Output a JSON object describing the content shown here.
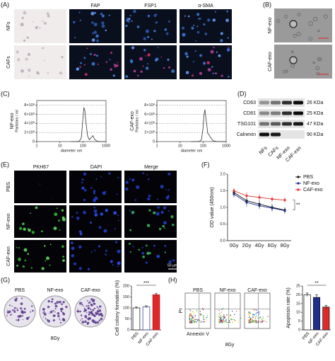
{
  "panels": {
    "A": {
      "label": "(A)",
      "columns": [
        "FAP",
        "FSP1",
        "α-SMA"
      ],
      "rows": [
        "NFs",
        "CAFs"
      ]
    },
    "B": {
      "label": "(B)",
      "rows": [
        "NF-exo",
        "CAF-exo"
      ]
    },
    "C": {
      "label": "(C)"
    },
    "D": {
      "label": "(D)",
      "proteins": [
        "CD63",
        "CD81",
        "TSG101",
        "Calnexin"
      ],
      "sizes": [
        "26 KDa",
        "25 KDa",
        "47 KDa",
        "90 KDa"
      ],
      "lanes": [
        "NFs",
        "CAFs",
        "NF-exo",
        "CAF-exo"
      ]
    },
    "E": {
      "label": "(E)",
      "columns": [
        "PKH67",
        "DAPI",
        "Merge"
      ],
      "rows": [
        "PBS",
        "NF-exo",
        "CAF-exo"
      ],
      "scale_bar": "50 μm"
    },
    "F": {
      "label": "(F)"
    },
    "G": {
      "label": "(G)",
      "groups": [
        "PBS",
        "NF-exo",
        "CAF-exo"
      ],
      "dose": "8Gy"
    },
    "H": {
      "label": "(H)",
      "groups": [
        "PBS",
        "NF-exo",
        "CAF-exo"
      ],
      "y_axis": "PI",
      "x_axis": "Annexin V",
      "dose": "8Gy"
    }
  },
  "chart_data": [
    {
      "type": "line",
      "log_x": true,
      "xlabel": "diameter nm",
      "ylabel": "Particles / ml",
      "grid": true,
      "x": [
        30,
        50,
        70,
        85,
        100,
        110,
        120,
        135,
        160,
        190,
        230,
        270,
        320,
        400,
        600,
        1000
      ],
      "series": [
        {
          "name": "NF-exo",
          "color": "#333333",
          "values": [
            0,
            0,
            10000000,
            80000000,
            500000000,
            740000000,
            700000000,
            420000000,
            120000000,
            40000000,
            90000000,
            130000000,
            50000000,
            10000000,
            0,
            0
          ]
        }
      ],
      "xlim": [
        1,
        1000
      ],
      "xticks": [
        1,
        10,
        100,
        1000
      ],
      "ylim": [
        0,
        900000000
      ],
      "yticks": [
        0,
        {
          "value": 200000000,
          "label": "2×10⁸"
        },
        {
          "value": 400000000,
          "label": "4×10⁸"
        },
        {
          "value": 600000000,
          "label": "6×10⁸"
        },
        {
          "value": 800000000,
          "label": "8×10⁸"
        }
      ]
    },
    {
      "type": "line",
      "log_x": true,
      "xlabel": "diameter nm",
      "ylabel": "Particles / ml",
      "grid": true,
      "x": [
        30,
        50,
        70,
        85,
        100,
        110,
        120,
        135,
        160,
        190,
        230,
        270,
        320,
        400,
        600,
        1000
      ],
      "series": [
        {
          "name": "CAF-exo",
          "color": "#333333",
          "values": [
            0,
            0,
            5000000,
            40000000,
            300000000,
            600000000,
            700000000,
            480000000,
            180000000,
            130000000,
            60000000,
            20000000,
            10000000,
            0,
            0,
            0
          ]
        }
      ],
      "xlim": [
        1,
        1000
      ],
      "xticks": [
        1,
        10,
        100,
        1000
      ],
      "ylim": [
        0,
        900000000
      ],
      "yticks": [
        0,
        {
          "value": 200000000,
          "label": "2×10⁸"
        },
        {
          "value": 400000000,
          "label": "4×10⁸"
        },
        {
          "value": 600000000,
          "label": "6×10⁸"
        },
        {
          "value": 800000000,
          "label": "8×10⁸"
        }
      ]
    },
    {
      "type": "line",
      "ylabel": "OD value (450nm)",
      "legend": "right",
      "annotation": "**",
      "categories": [
        "0Gy",
        "2Gy",
        "4Gy",
        "6Gy",
        "8Gy"
      ],
      "series": [
        {
          "name": "PBS",
          "color": "#111111",
          "values": [
            1.45,
            1.2,
            1.1,
            1.0,
            0.92
          ],
          "errors": [
            0.1,
            0.1,
            0.1,
            0.1,
            0.08
          ]
        },
        {
          "name": "NF-exo",
          "color": "#1f2f8f",
          "values": [
            1.4,
            1.15,
            1.05,
            0.98,
            0.9
          ],
          "errors": [
            0.1,
            0.12,
            0.1,
            0.1,
            0.08
          ]
        },
        {
          "name": "CAF-exo",
          "color": "#e03030",
          "values": [
            1.5,
            1.35,
            1.3,
            1.25,
            1.22
          ],
          "errors": [
            0.08,
            0.1,
            0.1,
            0.08,
            0.08
          ]
        }
      ],
      "ylim": [
        0,
        2.0
      ],
      "yticks": [
        {
          "value": 0,
          "label": "0.0"
        },
        0.5,
        {
          "value": 1,
          "label": "1.0"
        },
        1.5,
        {
          "value": 2,
          "label": "2.0"
        }
      ]
    },
    {
      "type": "bar",
      "ylabel": "Cell colony formation (%)",
      "annotation": "***",
      "categories": [
        "PBS",
        "NF-exo",
        "CAF-exo"
      ],
      "values": [
        100,
        105,
        160
      ],
      "errors": [
        4,
        5,
        6
      ],
      "colors": [
        "#ffffff",
        "#ffffff",
        "#e02828"
      ],
      "edgecolors": [
        "#111111",
        "#1f2f8f",
        "#b01010"
      ],
      "ylim": [
        0,
        200
      ],
      "yticks": [
        0,
        50,
        100,
        150,
        200
      ]
    },
    {
      "type": "bar",
      "ylabel": "Apoptosis rate (%)",
      "annotation": "**",
      "categories": [
        "PBS",
        "NF-exo",
        "CAF-exo"
      ],
      "values": [
        20,
        18.5,
        13
      ],
      "errors": [
        1,
        1.5,
        1
      ],
      "colors": [
        "#ffffff",
        "#1f2f8f",
        "#e02828"
      ],
      "edgecolors": [
        "#111111",
        "#111111",
        "#111111"
      ],
      "ylim": [
        0,
        25
      ],
      "yticks": [
        0,
        5,
        10,
        15,
        20,
        25
      ]
    }
  ]
}
